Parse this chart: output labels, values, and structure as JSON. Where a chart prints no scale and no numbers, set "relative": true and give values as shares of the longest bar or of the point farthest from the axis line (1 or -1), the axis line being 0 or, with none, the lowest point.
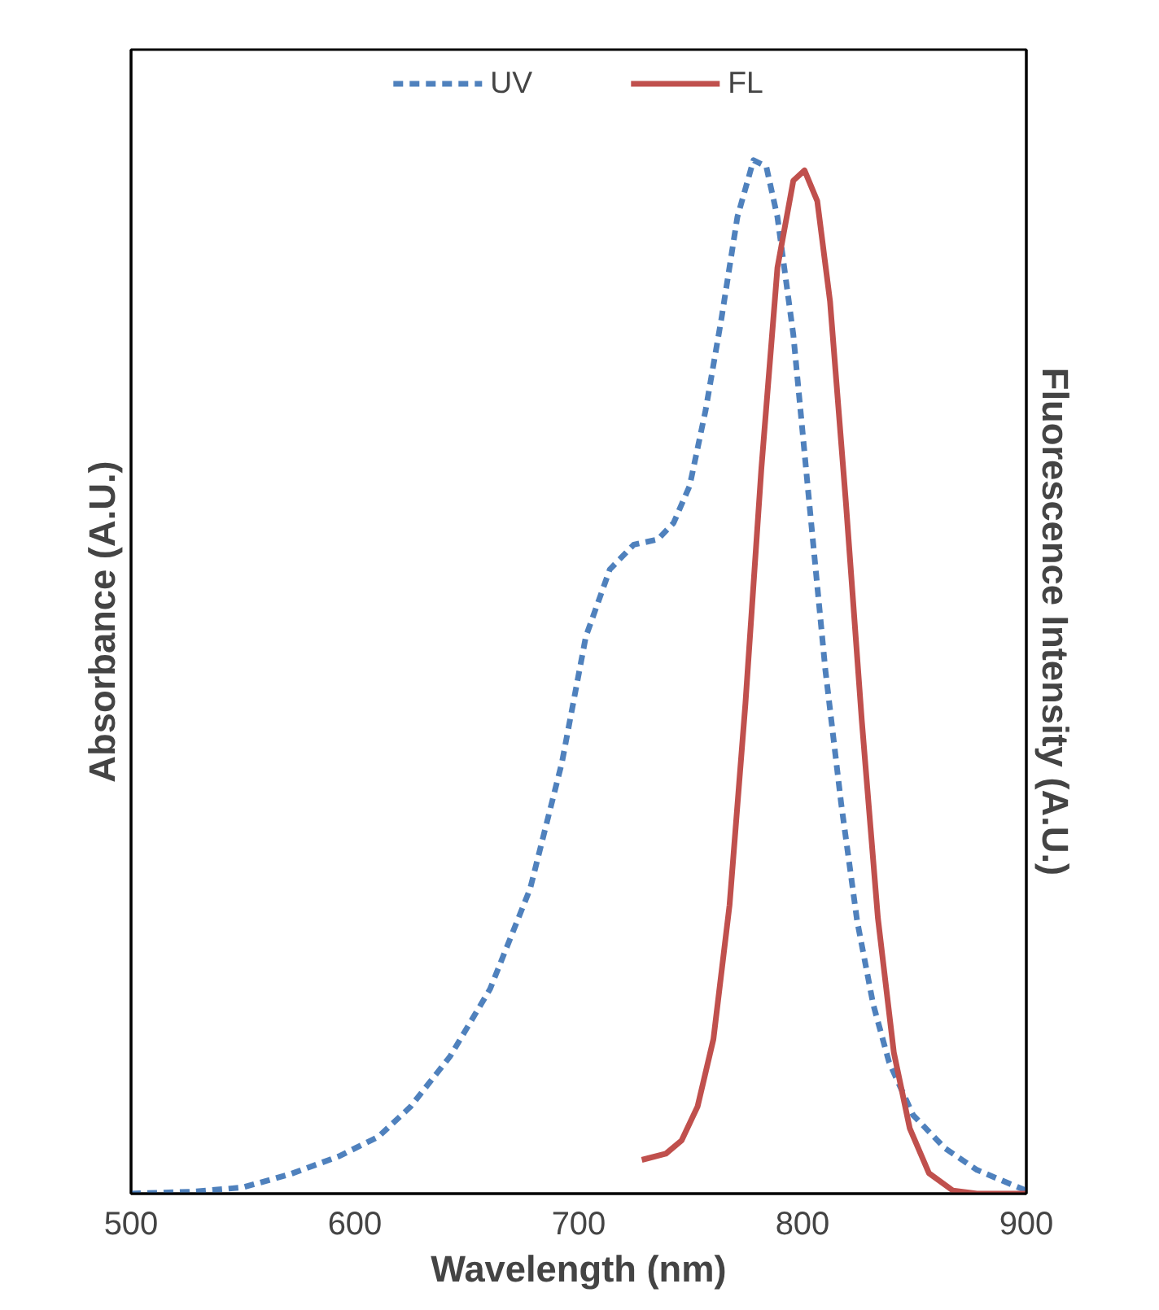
{
  "chart_data": {
    "type": "line",
    "relative": true,
    "xlabel": "Wavelength (nm)",
    "ylabel": "Absorbance (A.U.)",
    "y2label": "Fluorescence Intensity (A.U.)",
    "xlim": [
      500,
      900
    ],
    "xticks": [
      500,
      600,
      700,
      800,
      900
    ],
    "grid": false,
    "legend": "top",
    "marker": "none",
    "series": [
      {
        "name": "UV",
        "color": "#4f81bd",
        "line_style": "dashed",
        "x": [
          500,
          528.5,
          549.9,
          571.3,
          592.7,
          610.5,
          624.8,
          642.6,
          660.4,
          678.3,
          692.5,
          703.2,
          713.9,
          724.6,
          735.3,
          742.4,
          749.6,
          756.7,
          763.8,
          770.9,
          778.1,
          783.8,
          788.8,
          795.9,
          803.0,
          810.2,
          817.3,
          824.4,
          831.6,
          838.7,
          849.4,
          863.6,
          877.9,
          892.1,
          900
        ],
        "values": [
          0,
          0.002,
          0.006,
          0.019,
          0.036,
          0.055,
          0.084,
          0.133,
          0.198,
          0.295,
          0.417,
          0.539,
          0.604,
          0.628,
          0.633,
          0.649,
          0.685,
          0.758,
          0.847,
          0.945,
          1.0,
          0.994,
          0.945,
          0.831,
          0.669,
          0.507,
          0.377,
          0.264,
          0.183,
          0.127,
          0.076,
          0.044,
          0.023,
          0.01,
          0.003
        ]
      },
      {
        "name": "FL",
        "color": "#c0504d",
        "line_style": "solid",
        "axis": "y2",
        "x": [
          728.2,
          738.9,
          746.0,
          753.1,
          760.2,
          767.4,
          774.5,
          781.6,
          788.8,
          795.9,
          800.9,
          806.6,
          812.3,
          819.4,
          826.5,
          833.7,
          840.8,
          847.9,
          856.5,
          867.2,
          877.9,
          900
        ],
        "values": [
          0.033,
          0.039,
          0.052,
          0.085,
          0.151,
          0.282,
          0.479,
          0.708,
          0.905,
          0.99,
          1.0,
          0.97,
          0.872,
          0.675,
          0.462,
          0.269,
          0.138,
          0.064,
          0.02,
          0.003,
          0,
          0
        ]
      }
    ]
  }
}
